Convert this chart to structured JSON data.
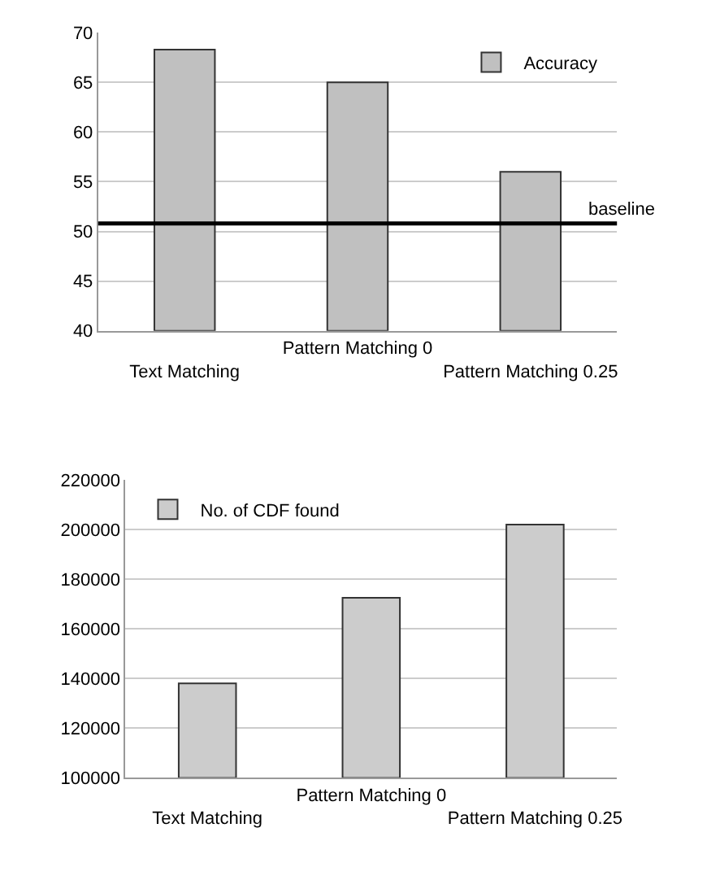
{
  "chart_data": [
    {
      "type": "bar",
      "categories": [
        "Text Matching",
        "Pattern Matching 0",
        "Pattern Matching 0.25"
      ],
      "series": [
        {
          "name": "Accuracy",
          "color": "#c0c0c0",
          "values": [
            68.3,
            65,
            56
          ]
        }
      ],
      "ylim": [
        40,
        70
      ],
      "yticks": [
        40,
        45,
        50,
        55,
        60,
        65,
        70
      ],
      "grid": "y",
      "legend": "top right",
      "ref_lines": [
        {
          "axis": "y",
          "value": 50.8,
          "label": "baseline",
          "color": "#000000"
        }
      ]
    },
    {
      "type": "bar",
      "categories": [
        "Text Matching",
        "Pattern Matching 0",
        "Pattern Matching 0.25"
      ],
      "series": [
        {
          "name": "No. of CDF found",
          "color": "#cccccc",
          "values": [
            138000,
            172500,
            202000
          ]
        }
      ],
      "ylim": [
        100000,
        220000
      ],
      "yticks": [
        100000,
        120000,
        140000,
        160000,
        180000,
        200000,
        220000
      ],
      "grid": "y",
      "legend": "top left"
    }
  ]
}
